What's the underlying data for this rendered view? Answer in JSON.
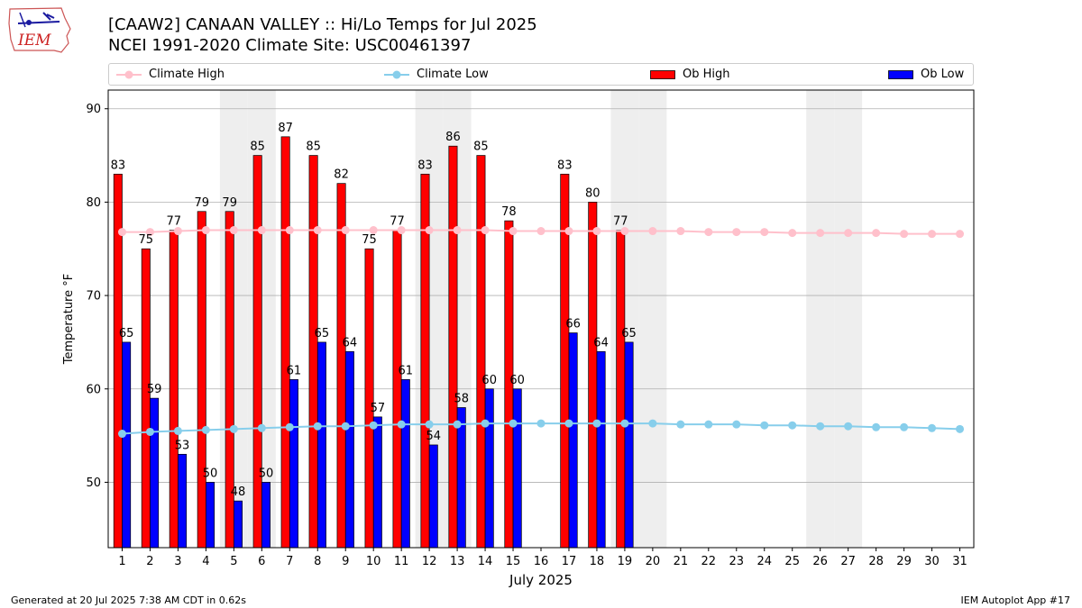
{
  "header": {
    "logo_text": "IEM",
    "title_line1": "[CAAW2] CANAAN VALLEY :: Hi/Lo Temps for Jul 2025",
    "title_line2": "NCEI 1991-2020 Climate Site: USC00461397"
  },
  "footer": {
    "generated": "Generated at 20 Jul 2025 7:38 AM CDT in 0.62s",
    "app": "IEM Autoplot App #17"
  },
  "colors": {
    "climate_high": "#ffc0cb",
    "climate_low": "#87ceeb",
    "ob_high": "#ff0000",
    "ob_low": "#0000ff",
    "weekend_shade": "#eeeeee"
  },
  "chart_data": {
    "type": "bar",
    "xlabel": "July 2025",
    "ylabel": "Temperature °F",
    "ylim": [
      43,
      92
    ],
    "yticks": [
      50,
      60,
      70,
      80,
      90
    ],
    "xlim": [
      0.5,
      31.5
    ],
    "grid": "horizontal",
    "legend_position": "top",
    "weekend_days": [
      5,
      6,
      12,
      13,
      19,
      20,
      26,
      27
    ],
    "days": [
      1,
      2,
      3,
      4,
      5,
      6,
      7,
      8,
      9,
      10,
      11,
      12,
      13,
      14,
      15,
      16,
      17,
      18,
      19,
      20,
      21,
      22,
      23,
      24,
      25,
      26,
      27,
      28,
      29,
      30,
      31
    ],
    "series": [
      {
        "name": "Climate High",
        "kind": "line",
        "values": [
          76.8,
          76.8,
          76.9,
          77.0,
          77.0,
          77.0,
          77.0,
          77.0,
          77.0,
          77.0,
          77.0,
          77.0,
          77.0,
          77.0,
          76.9,
          76.9,
          76.9,
          76.9,
          76.9,
          76.9,
          76.9,
          76.8,
          76.8,
          76.8,
          76.7,
          76.7,
          76.7,
          76.7,
          76.6,
          76.6,
          76.6
        ]
      },
      {
        "name": "Climate Low",
        "kind": "line",
        "values": [
          55.2,
          55.4,
          55.5,
          55.6,
          55.7,
          55.8,
          55.9,
          56.0,
          56.0,
          56.1,
          56.2,
          56.2,
          56.2,
          56.3,
          56.3,
          56.3,
          56.3,
          56.3,
          56.3,
          56.3,
          56.2,
          56.2,
          56.2,
          56.1,
          56.1,
          56.0,
          56.0,
          55.9,
          55.9,
          55.8,
          55.7
        ]
      },
      {
        "name": "Ob High",
        "kind": "bar",
        "values": [
          83,
          75,
          77,
          79,
          79,
          85,
          87,
          85,
          82,
          75,
          77,
          83,
          86,
          85,
          78,
          null,
          83,
          80,
          77,
          null,
          null,
          null,
          null,
          null,
          null,
          null,
          null,
          null,
          null,
          null,
          null
        ]
      },
      {
        "name": "Ob Low",
        "kind": "bar",
        "values": [
          65,
          59,
          53,
          50,
          48,
          50,
          61,
          65,
          64,
          57,
          61,
          54,
          58,
          60,
          60,
          null,
          66,
          64,
          65,
          null,
          null,
          null,
          null,
          null,
          null,
          null,
          null,
          null,
          null,
          null,
          null
        ]
      }
    ]
  }
}
